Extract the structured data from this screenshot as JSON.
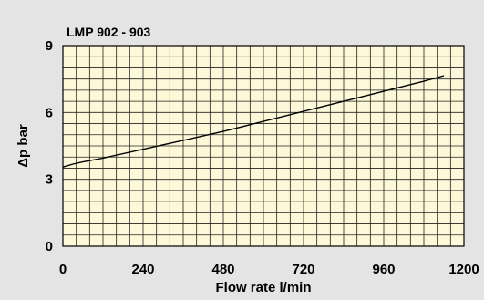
{
  "chart_data": {
    "type": "line",
    "title": "LMP 902 - 903",
    "xlabel": "Flow rate l/min",
    "ylabel": "Δp bar",
    "xlim": [
      0,
      1200
    ],
    "ylim": [
      0,
      9
    ],
    "x_ticks": [
      "0",
      "240",
      "480",
      "720",
      "960",
      "1200"
    ],
    "y_ticks": [
      "0",
      "3",
      "6",
      "9"
    ],
    "grid": true,
    "colors": {
      "plot_background": "#fdf8d8",
      "grid": "#222222",
      "line": "#000000",
      "page_background": "#e4e4e4"
    },
    "series": [
      {
        "x": [
          0,
          30,
          60,
          120,
          240,
          360,
          480,
          600,
          720,
          840,
          960,
          1080,
          1140
        ],
        "y": [
          3.55,
          3.68,
          3.78,
          3.95,
          4.35,
          4.75,
          5.15,
          5.6,
          6.05,
          6.5,
          6.95,
          7.4,
          7.65
        ]
      }
    ]
  }
}
